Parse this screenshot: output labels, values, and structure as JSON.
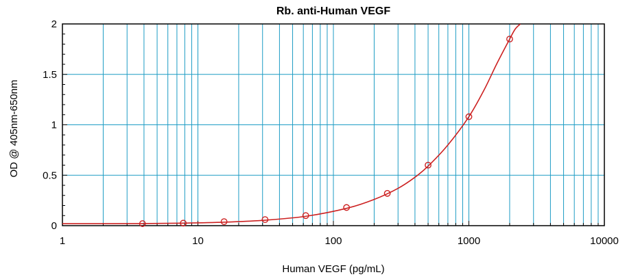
{
  "chart_data": {
    "type": "scatter",
    "title": "Rb. anti-Human VEGF",
    "xlabel": "Human VEGF (pg/mL)",
    "ylabel": "OD @ 405nm-650nm",
    "x_scale": "log",
    "xlim": [
      1,
      10000
    ],
    "ylim": [
      0,
      2
    ],
    "x_ticks": [
      {
        "value": 1,
        "label": "1"
      },
      {
        "value": 10,
        "label": "10"
      },
      {
        "value": 100,
        "label": "100"
      },
      {
        "value": 1000,
        "label": "1000"
      },
      {
        "value": 10000,
        "label": "10000"
      }
    ],
    "y_ticks": [
      {
        "value": 0,
        "label": "0"
      },
      {
        "value": 0.5,
        "label": "0.5"
      },
      {
        "value": 1,
        "label": "1"
      },
      {
        "value": 1.5,
        "label": "1.5"
      },
      {
        "value": 2,
        "label": "2"
      }
    ],
    "grid": true,
    "series": [
      {
        "kind": "points",
        "marker": "open-circle",
        "x": [
          3.9,
          7.8,
          15.6,
          31.3,
          62.5,
          125,
          250,
          500,
          1000,
          2000
        ],
        "y": [
          0.02,
          0.025,
          0.04,
          0.06,
          0.1,
          0.18,
          0.32,
          0.6,
          1.08,
          1.85
        ]
      },
      {
        "kind": "fit-curve",
        "x": [
          1,
          2,
          4,
          8,
          16,
          32,
          64,
          128,
          200,
          300,
          400,
          500,
          700,
          1000,
          1300,
          1600,
          2000,
          2200,
          2400
        ],
        "y": [
          0.02,
          0.02,
          0.021,
          0.025,
          0.035,
          0.055,
          0.095,
          0.175,
          0.26,
          0.37,
          0.48,
          0.59,
          0.8,
          1.08,
          1.35,
          1.6,
          1.85,
          1.95,
          2.0
        ]
      }
    ],
    "colors": {
      "grid": "#1c9bc4",
      "data": "#cc2020",
      "axis": "#000000"
    }
  }
}
